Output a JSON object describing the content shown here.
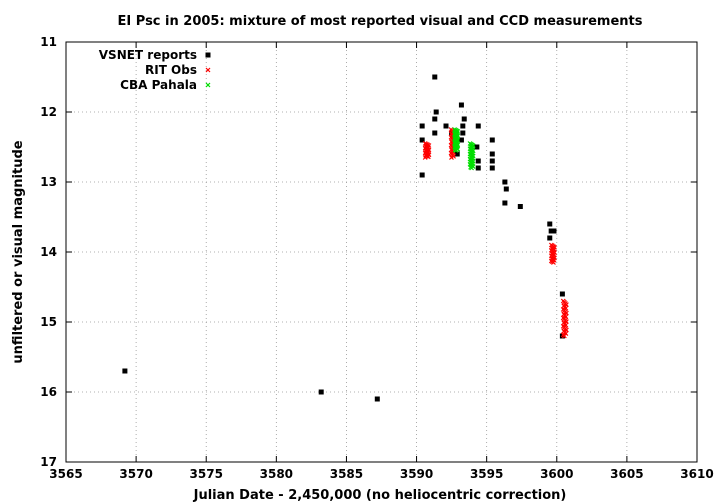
{
  "chart_data": {
    "type": "scatter",
    "title": "EI Psc in 2005: mixture of most reported visual and CCD measurements",
    "xlabel": "Julian Date - 2,450,000 (no heliocentric correction)",
    "ylabel": "unfiltered or visual magnitude",
    "xlim": [
      3565,
      3610
    ],
    "ylim": [
      11,
      17
    ],
    "y_inverted": true,
    "x_ticks": [
      "3565",
      "3570",
      "3575",
      "3580",
      "3585",
      "3590",
      "3595",
      "3600",
      "3605",
      "3610"
    ],
    "y_ticks": [
      "11",
      "12",
      "13",
      "14",
      "15",
      "16",
      "17"
    ],
    "grid": true,
    "legend_position": "top-left",
    "series": [
      {
        "name": "VSNET reports",
        "color": "#000000",
        "marker": "square",
        "points": [
          [
            3569.2,
            15.7
          ],
          [
            3583.2,
            16.0
          ],
          [
            3587.2,
            16.1
          ],
          [
            3590.4,
            12.2
          ],
          [
            3590.4,
            12.4
          ],
          [
            3590.4,
            12.9
          ],
          [
            3591.3,
            11.5
          ],
          [
            3591.4,
            12.0
          ],
          [
            3591.3,
            12.1
          ],
          [
            3591.3,
            12.3
          ],
          [
            3592.1,
            12.2
          ],
          [
            3592.5,
            12.3
          ],
          [
            3592.9,
            12.6
          ],
          [
            3593.2,
            11.9
          ],
          [
            3593.4,
            12.1
          ],
          [
            3593.3,
            12.2
          ],
          [
            3593.3,
            12.3
          ],
          [
            3593.2,
            12.4
          ],
          [
            3594.4,
            12.2
          ],
          [
            3594.3,
            12.5
          ],
          [
            3594.4,
            12.7
          ],
          [
            3594.4,
            12.8
          ],
          [
            3595.4,
            12.4
          ],
          [
            3595.4,
            12.6
          ],
          [
            3595.4,
            12.7
          ],
          [
            3595.4,
            12.8
          ],
          [
            3596.3,
            13.0
          ],
          [
            3596.4,
            13.1
          ],
          [
            3596.3,
            13.3
          ],
          [
            3597.4,
            13.35
          ],
          [
            3599.5,
            13.6
          ],
          [
            3599.6,
            13.7
          ],
          [
            3599.8,
            13.7
          ],
          [
            3599.5,
            13.8
          ],
          [
            3600.4,
            14.6
          ],
          [
            3600.4,
            15.2
          ]
        ]
      },
      {
        "name": "RIT Obs",
        "color": "#ff0000",
        "marker": "cross",
        "segments": [
          {
            "x": [
              3590.6,
              3590.9
            ],
            "y": [
              12.45,
              12.65
            ],
            "n": 22
          },
          {
            "x": [
              3592.45,
              3592.65
            ],
            "y": [
              12.25,
              12.65
            ],
            "n": 26
          },
          {
            "x": [
              3599.6,
              3599.85
            ],
            "y": [
              13.9,
              14.15
            ],
            "n": 24
          },
          {
            "x": [
              3600.45,
              3600.7
            ],
            "y": [
              14.7,
              15.2
            ],
            "n": 30
          }
        ]
      },
      {
        "name": "CBA Pahala",
        "color": "#00dd00",
        "marker": "cross",
        "segments": [
          {
            "x": [
              3592.7,
              3592.95
            ],
            "y": [
              12.25,
              12.55
            ],
            "n": 34
          },
          {
            "x": [
              3593.8,
              3594.05
            ],
            "y": [
              12.45,
              12.8
            ],
            "n": 34
          }
        ]
      }
    ]
  }
}
